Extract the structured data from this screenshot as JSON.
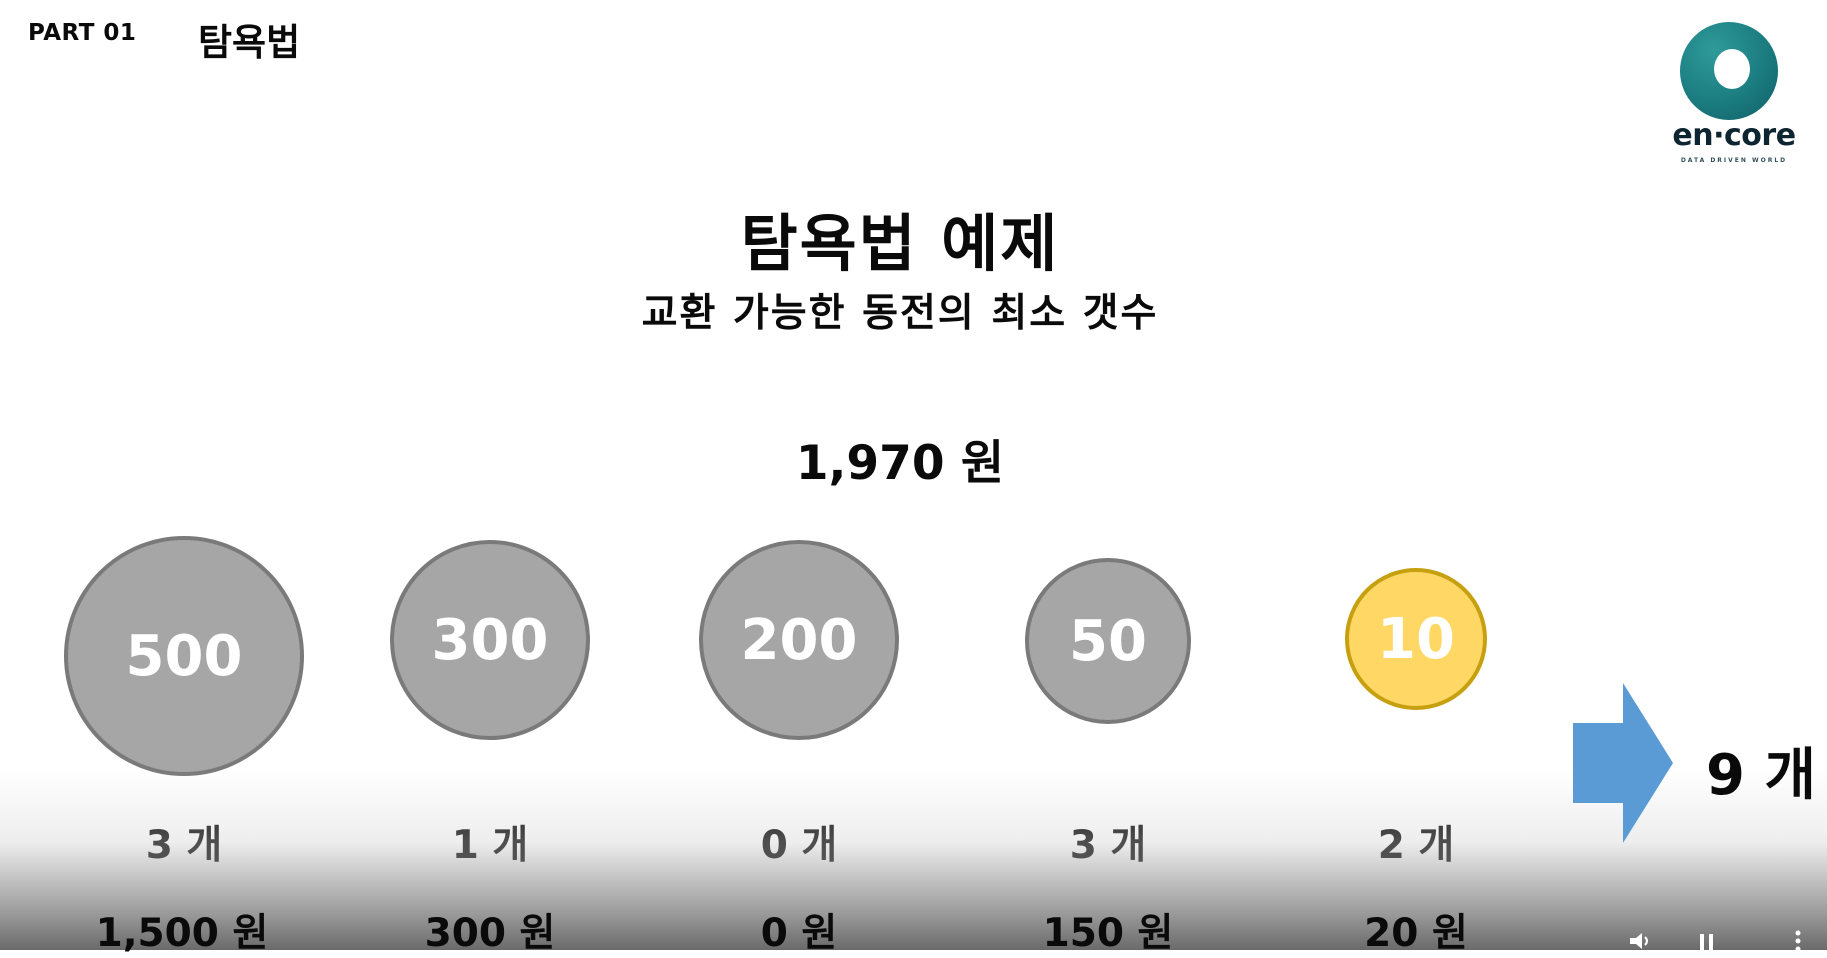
{
  "header": {
    "part_label": "PART 01",
    "section_title": "탐욕법"
  },
  "logo": {
    "wordmark": "en·core",
    "tagline": "DATA DRIVEN WORLD",
    "colors": {
      "ring": "#1b7c80",
      "text": "#0d2431"
    }
  },
  "slide": {
    "title": "탐욕법 예제",
    "subtitle": "교환 가능한 동전의 최소 갯수",
    "amount": "1,970 원"
  },
  "coins": [
    {
      "label": "500",
      "count": "3 개",
      "sum": "1,500 원",
      "style": "gray"
    },
    {
      "label": "300",
      "count": "1 개",
      "sum": "300 원",
      "style": "gray"
    },
    {
      "label": "200",
      "count": "0 개",
      "sum": "0 원",
      "style": "gray"
    },
    {
      "label": "50",
      "count": "3 개",
      "sum": "150 원",
      "style": "gray"
    },
    {
      "label": "10",
      "count": "2 개",
      "sum": "20 원",
      "style": "gold"
    }
  ],
  "result": {
    "total": "9 개",
    "arrow_color": "#5b9bd5"
  },
  "colors": {
    "coin_gray": "#a6a6a6",
    "coin_gray_border": "#7a7a7a",
    "coin_gold": "#ffd764",
    "coin_gold_border": "#c7a010"
  },
  "player_controls": [
    {
      "icon": "volume-icon"
    },
    {
      "icon": "pause-icon"
    },
    {
      "icon": "more-icon"
    }
  ]
}
